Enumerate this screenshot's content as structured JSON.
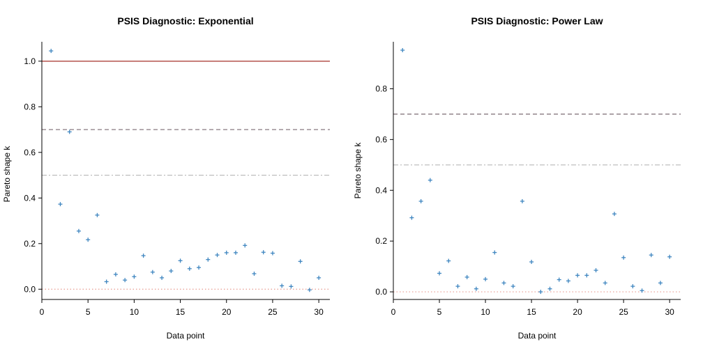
{
  "chart_data": [
    {
      "type": "scatter",
      "title": "PSIS Diagnostic: Exponential",
      "xlabel": "Data point",
      "ylabel": "Pareto shape k",
      "xlim": [
        0,
        31.2
      ],
      "ylim": [
        -0.045,
        1.085
      ],
      "xticks": [
        0,
        5,
        10,
        15,
        20,
        25,
        30
      ],
      "yticks": [
        0.0,
        0.2,
        0.4,
        0.6,
        0.8,
        1.0
      ],
      "ytick_labels": [
        "0.0",
        "0.2",
        "0.4",
        "0.6",
        "0.8",
        "1.0"
      ],
      "x": [
        1,
        2,
        3,
        4,
        5,
        6,
        7,
        8,
        9,
        10,
        11,
        12,
        13,
        14,
        15,
        16,
        17,
        18,
        19,
        20,
        21,
        22,
        23,
        24,
        25,
        26,
        27,
        28,
        29,
        30
      ],
      "values": [
        1.045,
        0.373,
        0.69,
        0.255,
        0.217,
        0.325,
        0.033,
        0.065,
        0.04,
        0.055,
        0.147,
        0.075,
        0.05,
        0.08,
        0.125,
        0.09,
        0.095,
        0.13,
        0.15,
        0.16,
        0.16,
        0.192,
        0.068,
        0.162,
        0.158,
        0.015,
        0.012,
        0.122,
        -0.003,
        0.05
      ],
      "reference_lines": [
        {
          "y": 1.0,
          "style": "solid",
          "color": "#b5524c"
        },
        {
          "y": 0.7,
          "style": "dashed",
          "color": "#7a6a72"
        },
        {
          "y": 0.5,
          "style": "dashdot",
          "color": "#b8b8b8"
        },
        {
          "y": 0.0,
          "style": "dotted",
          "color": "#e89a90"
        }
      ],
      "marker_color": "#3f86c0",
      "grid": false
    },
    {
      "type": "scatter",
      "title": "PSIS Diagnostic: Power Law",
      "xlabel": "Data point",
      "ylabel": "Pareto shape k",
      "xlim": [
        0,
        31.2
      ],
      "ylim": [
        -0.03,
        0.985
      ],
      "xticks": [
        0,
        5,
        10,
        15,
        20,
        25,
        30
      ],
      "yticks": [
        0.0,
        0.2,
        0.4,
        0.6,
        0.8
      ],
      "ytick_labels": [
        "0.0",
        "0.2",
        "0.4",
        "0.6",
        "0.8"
      ],
      "x": [
        1,
        2,
        3,
        4,
        5,
        6,
        7,
        8,
        9,
        10,
        11,
        12,
        13,
        14,
        15,
        16,
        17,
        18,
        19,
        20,
        21,
        22,
        23,
        24,
        25,
        26,
        27,
        28,
        29,
        30
      ],
      "values": [
        0.952,
        0.292,
        0.357,
        0.44,
        0.073,
        0.122,
        0.022,
        0.058,
        0.012,
        0.05,
        0.155,
        0.035,
        0.022,
        0.357,
        0.118,
        0.0,
        0.012,
        0.048,
        0.043,
        0.065,
        0.065,
        0.085,
        0.035,
        0.307,
        0.135,
        0.022,
        0.005,
        0.145,
        0.035,
        0.138
      ],
      "reference_lines": [
        {
          "y": 0.7,
          "style": "dashed",
          "color": "#7a6a72"
        },
        {
          "y": 0.5,
          "style": "dashdot",
          "color": "#b8b8b8"
        },
        {
          "y": 0.0,
          "style": "dotted",
          "color": "#e89a90"
        }
      ],
      "marker_color": "#3f86c0",
      "grid": false
    }
  ]
}
